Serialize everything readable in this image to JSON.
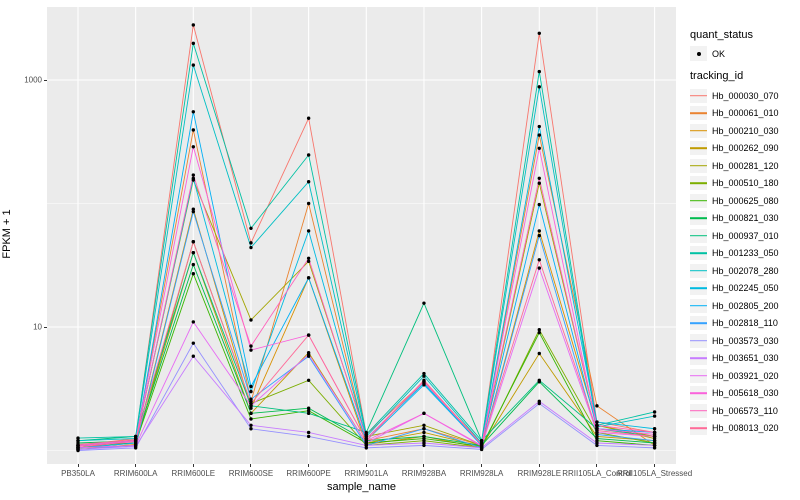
{
  "figure": {
    "background": "#FFFFFF",
    "panel_background": "#EBEBEB",
    "grid_color": "#FFFFFF",
    "tick_label_color": "#4D4D4D",
    "point_color": "#000000"
  },
  "legend": {
    "quant_title": "quant_status",
    "quant_items": [
      {
        "label": "OK",
        "marker": "point-icon"
      }
    ],
    "tracking_title": "tracking_id"
  },
  "chart_data": {
    "type": "line",
    "title": "",
    "xlabel": "sample_name",
    "ylabel": "FPKM + 1",
    "y_scale": "log10",
    "ylim": [
      1,
      3000
    ],
    "y_major_ticks": [
      10,
      1000
    ],
    "y_minor_gridlines": [
      1,
      100
    ],
    "grid": true,
    "legend_position": "right",
    "point_color": "#000000",
    "categories": [
      "PB350LA",
      "RRIM600LA",
      "RRIM600LE",
      "RRIM600SE",
      "RRIM600PE",
      "RRIM901LA",
      "RRIM928BA",
      "RRIM928LA",
      "RRIM928LE",
      "RRII105LA_Control",
      "RRII105LA_Stressed"
    ],
    "series": [
      {
        "name": "Hb_000030_070",
        "color": "#F8766D",
        "values": [
          1.1,
          1.25,
          2790,
          48,
          490,
          1.35,
          3.6,
          1.15,
          2390,
          1.7,
          1.4
        ]
      },
      {
        "name": "Hb_000061_010",
        "color": "#EA8331",
        "values": [
          1.05,
          1.2,
          394,
          2.5,
          100,
          1.2,
          1.5,
          1.1,
          358,
          2.3,
          1.1
        ]
      },
      {
        "name": "Hb_000210_030",
        "color": "#D89000",
        "values": [
          1.02,
          1.12,
          90,
          2.2,
          25,
          1.12,
          1.3,
          1.05,
          60,
          1.6,
          1.3
        ]
      },
      {
        "name": "Hb_000262_090",
        "color": "#C09B00",
        "values": [
          1.05,
          1.15,
          40,
          2.0,
          6.2,
          1.15,
          1.4,
          1.08,
          6.1,
          1.3,
          1.2
        ]
      },
      {
        "name": "Hb_000281_120",
        "color": "#A3A500",
        "values": [
          1.08,
          1.2,
          155,
          11.4,
          34,
          1.3,
          1.6,
          1.1,
          146,
          1.6,
          1.25
        ]
      },
      {
        "name": "Hb_000510_180",
        "color": "#7CAE00",
        "values": [
          1.05,
          1.1,
          49,
          2.4,
          3.7,
          1.1,
          1.2,
          1.05,
          9.5,
          1.4,
          1.15
        ]
      },
      {
        "name": "Hb_000625_080",
        "color": "#39B600",
        "values": [
          1.1,
          1.15,
          27,
          1.8,
          2.1,
          1.15,
          1.25,
          1.08,
          9.0,
          1.2,
          1.1
        ]
      },
      {
        "name": "Hb_000821_030",
        "color": "#00BB4E",
        "values": [
          1.15,
          1.2,
          32,
          2.0,
          2.2,
          1.2,
          1.3,
          1.1,
          3.6,
          1.25,
          1.15
        ]
      },
      {
        "name": "Hb_000937_010",
        "color": "#00BF7D",
        "values": [
          1.2,
          1.3,
          40,
          2.3,
          2.0,
          1.4,
          15.6,
          1.2,
          3.7,
          1.5,
          1.3
        ]
      },
      {
        "name": "Hb_001233_050",
        "color": "#00C1A3",
        "values": [
          1.26,
          1.3,
          1980,
          63,
          247,
          1.35,
          4.2,
          1.2,
          1170,
          1.6,
          2.05
        ]
      },
      {
        "name": "Hb_002078_280",
        "color": "#00BFC4",
        "values": [
          1.2,
          1.25,
          1320,
          44,
          150,
          1.3,
          4.0,
          1.15,
          880,
          1.55,
          1.9
        ]
      },
      {
        "name": "Hb_002245_050",
        "color": "#00BAE0",
        "values": [
          1.1,
          1.2,
          160,
          3.0,
          60,
          1.25,
          3.5,
          1.1,
          420,
          1.7,
          1.5
        ]
      },
      {
        "name": "Hb_002805_200",
        "color": "#00B0F6",
        "values": [
          1.05,
          1.15,
          553,
          3.3,
          25,
          1.2,
          3.4,
          1.1,
          98,
          1.5,
          1.4
        ]
      },
      {
        "name": "Hb_002818_110",
        "color": "#35A2FF",
        "values": [
          1.02,
          1.1,
          86,
          2.6,
          5.8,
          1.1,
          1.5,
          1.05,
          55,
          1.35,
          1.2
        ]
      },
      {
        "name": "Hb_003573_030",
        "color": "#9590FF",
        "values": [
          1.0,
          1.05,
          7.4,
          1.5,
          1.3,
          1.05,
          1.1,
          1.02,
          2.4,
          1.1,
          1.05
        ]
      },
      {
        "name": "Hb_003651_030",
        "color": "#C77CFF",
        "values": [
          1.02,
          1.08,
          5.8,
          1.6,
          1.4,
          1.1,
          1.15,
          1.05,
          2.5,
          1.15,
          1.1
        ]
      },
      {
        "name": "Hb_003921_020",
        "color": "#E76BF3",
        "values": [
          1.05,
          1.1,
          11,
          2.3,
          6.0,
          1.15,
          2.0,
          1.08,
          30,
          1.4,
          1.3
        ]
      },
      {
        "name": "Hb_005618_030",
        "color": "#FA62DB",
        "values": [
          1.1,
          1.2,
          288,
          6.5,
          8.6,
          1.2,
          2.0,
          1.1,
          280,
          1.5,
          1.35
        ]
      },
      {
        "name": "Hb_006573_110",
        "color": "#FF62BC",
        "values": [
          1.08,
          1.18,
          170,
          7.0,
          36,
          1.25,
          3.6,
          1.12,
          160,
          1.6,
          1.4
        ]
      },
      {
        "name": "Hb_008013_020",
        "color": "#FF6A98",
        "values": [
          1.12,
          1.22,
          49,
          2.4,
          8.6,
          1.2,
          3.7,
          1.12,
          35,
          1.45,
          1.3
        ]
      }
    ]
  }
}
